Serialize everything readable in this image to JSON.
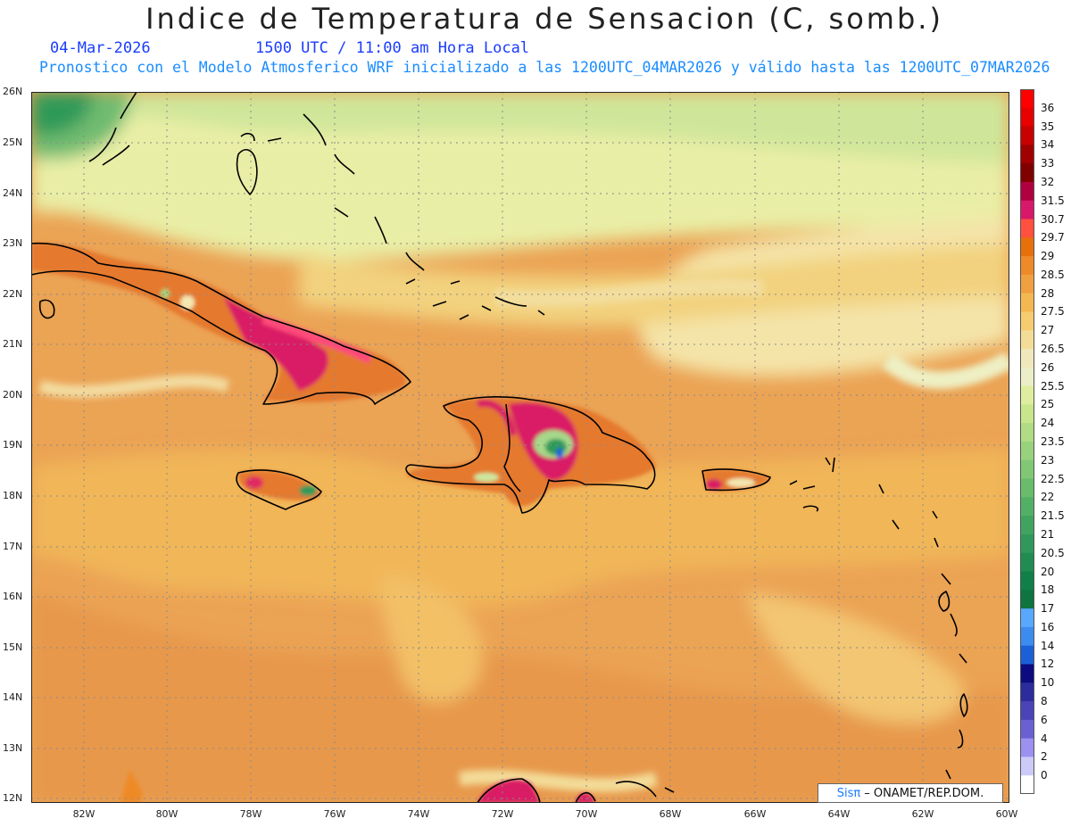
{
  "title": "Indice de Temperatura de Sensacion (C, somb.)",
  "date": "04-Mar-2026",
  "time_label": "1500 UTC / 11:00 am Hora Local",
  "subtitle": "Pronostico con el Modelo Atmosferico WRF inicializado a las 1200UTC_04MAR2026 y válido hasta las  1200UTC_07MAR2026",
  "credit": {
    "brand": "Sisπ",
    "text": "– ONAMET/REP.DOM."
  },
  "map": {
    "lat_labels": [
      "26N",
      "25N",
      "24N",
      "23N",
      "22N",
      "21N",
      "20N",
      "19N",
      "18N",
      "17N",
      "16N",
      "15N",
      "14N",
      "13N",
      "12N"
    ],
    "lon_labels": [
      "82W",
      "80W",
      "78W",
      "76W",
      "74W",
      "72W",
      "70W",
      "68W",
      "66W",
      "64W",
      "62W",
      "60W"
    ],
    "lon_range": [
      -83.2,
      -60
    ],
    "lat_range": [
      11.9,
      26.1
    ],
    "grid": true,
    "background_color": "#eba354"
  },
  "colorbar": {
    "labels": [
      "36",
      "35",
      "34",
      "33",
      "32",
      "31.5",
      "30.7",
      "29.7",
      "29",
      "28.5",
      "28",
      "27.5",
      "27",
      "26.5",
      "26",
      "25.5",
      "25",
      "24",
      "23.5",
      "23",
      "22.5",
      "22",
      "21.5",
      "21",
      "20.5",
      "20",
      "18",
      "17",
      "16",
      "14",
      "12",
      "10",
      "8",
      "6",
      "4",
      "2",
      "0"
    ],
    "colors": [
      "#ff0000",
      "#e60000",
      "#c80000",
      "#a00000",
      "#800000",
      "#b00040",
      "#d8186a",
      "#ff5040",
      "#e8700a",
      "#ee8a28",
      "#f0a040",
      "#f4b850",
      "#f5cc70",
      "#f3dc98",
      "#f0e8bc",
      "#eceec8",
      "#dfee9e",
      "#c8e68c",
      "#b0dc84",
      "#98d27c",
      "#80c874",
      "#68bc6c",
      "#52b066",
      "#40a460",
      "#30985a",
      "#208c52",
      "#108048",
      "#0e7440",
      "#58a8ff",
      "#3c8cf0",
      "#1c60d8",
      "#0c0c80",
      "#2c2c9c",
      "#4a44b8",
      "#6a60d4",
      "#9c90f0",
      "#cccaf8",
      "#ffffff"
    ]
  }
}
